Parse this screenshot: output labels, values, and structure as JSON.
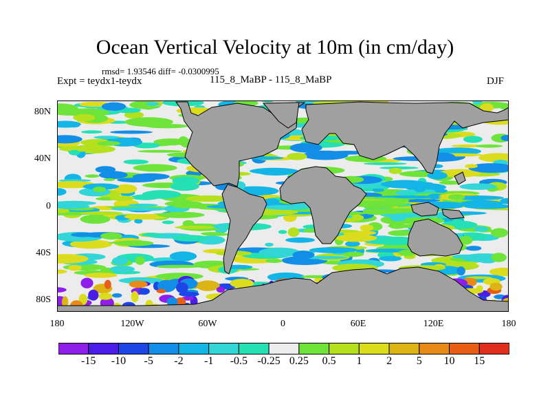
{
  "title": "Ocean Vertical Velocity at 10m (in cm/day)",
  "stats_line": "rmsd= 1.93546 diff= -0.0300995",
  "experiment_label": "Expt = teydx1-teydx",
  "case_label": "115_8_MaBP - 115_8_MaBP",
  "season_label": "DJF",
  "map": {
    "land_color": "#a0a0a0",
    "lat_labels": [
      "80N",
      "40N",
      "0",
      "40S",
      "80S"
    ],
    "lat_values": [
      80,
      40,
      0,
      -40,
      -80
    ],
    "lon_labels": [
      "180",
      "120W",
      "60W",
      "0",
      "60E",
      "120E",
      "180"
    ],
    "lon_values": [
      -180,
      -120,
      -60,
      0,
      60,
      120,
      180
    ],
    "lon_range": [
      -180,
      180
    ],
    "lat_range": [
      -90,
      90
    ]
  },
  "colorbar": {
    "labels": [
      "-15",
      "-10",
      "-5",
      "-2",
      "-1",
      "-0.5",
      "-0.25",
      "0.25",
      "0.5",
      "1",
      "2",
      "5",
      "10",
      "15"
    ],
    "colors": [
      "#8f1fe8",
      "#4b1ee8",
      "#1e46e6",
      "#138ee6",
      "#13b4e6",
      "#32d6d6",
      "#24e0b4",
      "#ececec",
      "#6ee33a",
      "#b4e01e",
      "#dcdc1e",
      "#dcb414",
      "#e88a18",
      "#e85e14",
      "#e0301c"
    ]
  }
}
